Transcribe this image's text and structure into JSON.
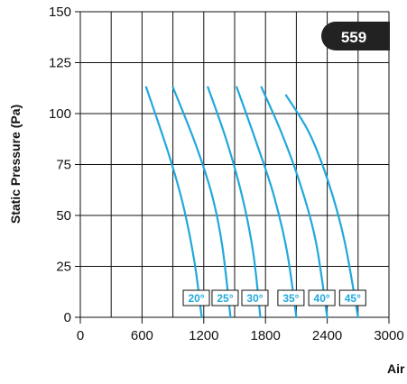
{
  "chart_data": {
    "type": "line",
    "ylabel": "Static Pressure (Pa)",
    "xlabel": "Air",
    "model_badge": "559",
    "xlim": [
      0,
      3000
    ],
    "ylim": [
      0,
      150
    ],
    "x_ticks": [
      "0",
      "600",
      "1200",
      "1800",
      "2400",
      "3000"
    ],
    "y_ticks": [
      "0",
      "25",
      "50",
      "75",
      "100",
      "125",
      "150"
    ],
    "grid": true,
    "series": [
      {
        "name": "20°",
        "points": [
          [
            640,
            113
          ],
          [
            860,
            80
          ],
          [
            1000,
            55
          ],
          [
            1110,
            27
          ],
          [
            1180,
            0
          ]
        ]
      },
      {
        "name": "25°",
        "points": [
          [
            900,
            113
          ],
          [
            1120,
            85
          ],
          [
            1280,
            60
          ],
          [
            1380,
            35
          ],
          [
            1460,
            0
          ]
        ]
      },
      {
        "name": "30°",
        "points": [
          [
            1240,
            113
          ],
          [
            1420,
            87
          ],
          [
            1570,
            60
          ],
          [
            1680,
            32
          ],
          [
            1750,
            0
          ]
        ]
      },
      {
        "name": "35°",
        "points": [
          [
            1520,
            113
          ],
          [
            1710,
            86
          ],
          [
            1880,
            60
          ],
          [
            2010,
            32
          ],
          [
            2100,
            0
          ]
        ]
      },
      {
        "name": "40°",
        "points": [
          [
            1760,
            113
          ],
          [
            1960,
            90
          ],
          [
            2140,
            65
          ],
          [
            2290,
            37
          ],
          [
            2400,
            0
          ]
        ]
      },
      {
        "name": "45°",
        "points": [
          [
            2000,
            109
          ],
          [
            2230,
            90
          ],
          [
            2420,
            65
          ],
          [
            2570,
            37
          ],
          [
            2700,
            0
          ]
        ]
      }
    ],
    "line_color": "#21a8dc",
    "badge_color": "#222222"
  }
}
